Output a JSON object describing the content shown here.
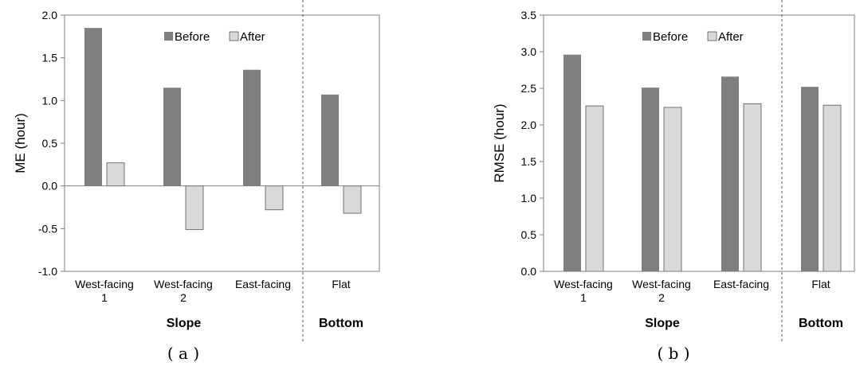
{
  "chart_data": [
    {
      "type": "bar",
      "panel_label": "( a )",
      "ylabel": "ME (hour)",
      "ylim": [
        -1.0,
        2.0
      ],
      "yticks": [
        "2.0",
        "1.5",
        "1.0",
        "0.5",
        "0.0",
        "-0.5",
        "-1.0"
      ],
      "ytick_values": [
        2.0,
        1.5,
        1.0,
        0.5,
        0.0,
        -0.5,
        -1.0
      ],
      "categories": [
        [
          "West-facing",
          "1"
        ],
        [
          "West-facing",
          "2"
        ],
        [
          "East-facing"
        ],
        [
          "Flat"
        ]
      ],
      "groups": [
        {
          "label": "Slope",
          "span": [
            0,
            2
          ]
        },
        {
          "label": "Bottom",
          "span": [
            3,
            3
          ]
        }
      ],
      "series": [
        {
          "name": "Before",
          "color": "#7f7f7f",
          "values": [
            1.85,
            1.15,
            1.36,
            1.07
          ]
        },
        {
          "name": "After",
          "color": "#d9d9d9",
          "values": [
            0.27,
            -0.51,
            -0.28,
            -0.32
          ]
        }
      ],
      "legend_position": "top-center",
      "grid": false
    },
    {
      "type": "bar",
      "panel_label": "( b )",
      "ylabel": "RMSE (hour)",
      "ylim": [
        0.0,
        3.5
      ],
      "yticks": [
        "3.5",
        "3.0",
        "2.5",
        "2.0",
        "1.5",
        "1.0",
        "0.5",
        "0.0"
      ],
      "ytick_values": [
        3.5,
        3.0,
        2.5,
        2.0,
        1.5,
        1.0,
        0.5,
        0.0
      ],
      "categories": [
        [
          "West-facing",
          "1"
        ],
        [
          "West-facing",
          "2"
        ],
        [
          "East-facing"
        ],
        [
          "Flat"
        ]
      ],
      "groups": [
        {
          "label": "Slope",
          "span": [
            0,
            2
          ]
        },
        {
          "label": "Bottom",
          "span": [
            3,
            3
          ]
        }
      ],
      "series": [
        {
          "name": "Before",
          "color": "#7f7f7f",
          "values": [
            2.96,
            2.51,
            2.66,
            2.52
          ]
        },
        {
          "name": "After",
          "color": "#d9d9d9",
          "values": [
            2.26,
            2.24,
            2.29,
            2.27
          ]
        }
      ],
      "legend_position": "top-center",
      "grid": false
    }
  ]
}
